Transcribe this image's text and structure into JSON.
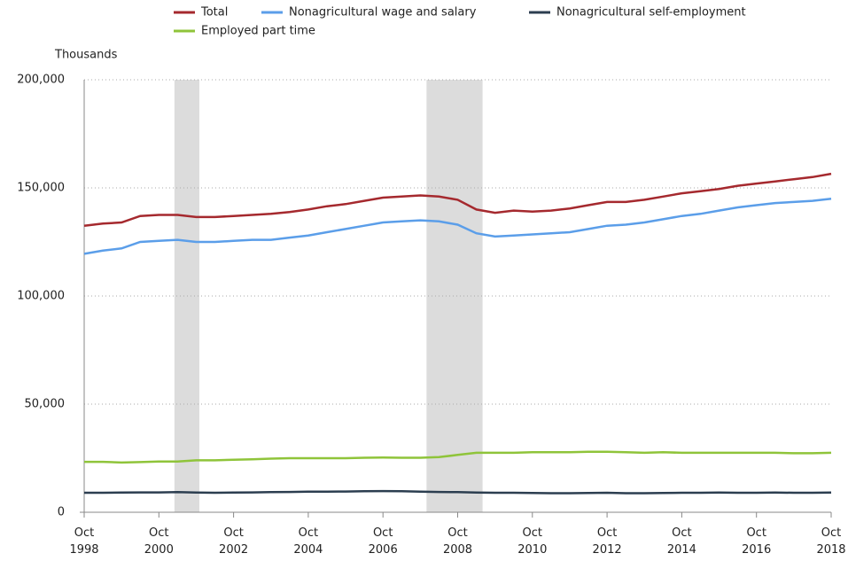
{
  "chart_data": {
    "type": "line",
    "y_axis_title": "Thousands",
    "x": [
      "1998-10",
      "1999-04",
      "1999-10",
      "2000-04",
      "2000-10",
      "2001-04",
      "2001-10",
      "2002-04",
      "2002-10",
      "2003-04",
      "2003-10",
      "2004-04",
      "2004-10",
      "2005-04",
      "2005-10",
      "2006-04",
      "2006-10",
      "2007-04",
      "2007-10",
      "2008-04",
      "2008-10",
      "2009-04",
      "2009-10",
      "2010-04",
      "2010-10",
      "2011-04",
      "2011-10",
      "2012-04",
      "2012-10",
      "2013-04",
      "2013-10",
      "2014-04",
      "2014-10",
      "2015-04",
      "2015-10",
      "2016-04",
      "2016-10",
      "2017-04",
      "2017-10",
      "2018-04",
      "2018-10"
    ],
    "series": [
      {
        "name": "Total",
        "color": "#a5292e",
        "values": [
          132500,
          133500,
          134000,
          137000,
          137500,
          137500,
          136500,
          136500,
          137000,
          137500,
          138000,
          138800,
          140000,
          141500,
          142500,
          144000,
          145500,
          146000,
          146500,
          146000,
          144500,
          140000,
          138500,
          139500,
          139000,
          139500,
          140500,
          142000,
          143500,
          143500,
          144500,
          146000,
          147500,
          148500,
          149500,
          151000,
          152000,
          153000,
          154000,
          155000,
          156500
        ]
      },
      {
        "name": "Nonagricultural wage and salary",
        "color": "#5b9ee9",
        "values": [
          119500,
          121000,
          122000,
          125000,
          125500,
          126000,
          125000,
          125000,
          125500,
          126000,
          126000,
          127000,
          128000,
          129500,
          131000,
          132500,
          134000,
          134500,
          135000,
          134500,
          133000,
          129000,
          127500,
          128000,
          128500,
          129000,
          129500,
          131000,
          132500,
          133000,
          134000,
          135500,
          137000,
          138000,
          139500,
          141000,
          142000,
          143000,
          143500,
          144000,
          145000
        ]
      },
      {
        "name": "Nonagricultural self-employment",
        "color": "#2c3e50",
        "values": [
          9000,
          9000,
          9100,
          9200,
          9200,
          9300,
          9100,
          9000,
          9100,
          9200,
          9300,
          9400,
          9500,
          9500,
          9600,
          9700,
          9800,
          9700,
          9500,
          9400,
          9300,
          9100,
          9000,
          9000,
          8900,
          8800,
          8800,
          8900,
          9000,
          8800,
          8800,
          8900,
          9000,
          9000,
          9100,
          9000,
          9000,
          9100,
          9000,
          9000,
          9100
        ]
      },
      {
        "name": "Employed part time",
        "color": "#8fc43a",
        "values": [
          23300,
          23300,
          23000,
          23200,
          23500,
          23500,
          24000,
          24000,
          24300,
          24500,
          24800,
          25000,
          25000,
          25000,
          25000,
          25200,
          25300,
          25200,
          25200,
          25500,
          26500,
          27500,
          27500,
          27500,
          27800,
          27800,
          27800,
          28000,
          28000,
          27800,
          27500,
          27800,
          27500,
          27500,
          27500,
          27500,
          27500,
          27500,
          27300,
          27300,
          27500
        ]
      }
    ],
    "shaded_periods": [
      [
        "2001-03",
        "2001-11"
      ],
      [
        "2007-12",
        "2009-06"
      ]
    ],
    "shade_color": "#dcdcdc",
    "xlim": [
      "1998-10",
      "2018-10"
    ],
    "xticks": [
      {
        "value": "1998-10",
        "label": "Oct\n1998"
      },
      {
        "value": "2000-10",
        "label": "Oct\n2000"
      },
      {
        "value": "2002-10",
        "label": "Oct\n2002"
      },
      {
        "value": "2004-10",
        "label": "Oct\n2004"
      },
      {
        "value": "2006-10",
        "label": "Oct\n2006"
      },
      {
        "value": "2008-10",
        "label": "Oct\n2008"
      },
      {
        "value": "2010-10",
        "label": "Oct\n2010"
      },
      {
        "value": "2012-10",
        "label": "Oct\n2012"
      },
      {
        "value": "2014-10",
        "label": "Oct\n2014"
      },
      {
        "value": "2016-10",
        "label": "Oct\n2016"
      },
      {
        "value": "2018-10",
        "label": "Oct\n2018"
      }
    ],
    "ylim": [
      0,
      200000
    ],
    "yticks": [
      0,
      {
        "value": 50000,
        "label": "50,000"
      },
      {
        "value": 100000,
        "label": "100,000"
      },
      {
        "value": 150000,
        "label": "150,000"
      },
      {
        "value": 200000,
        "label": "200,000"
      }
    ],
    "grid": true
  }
}
